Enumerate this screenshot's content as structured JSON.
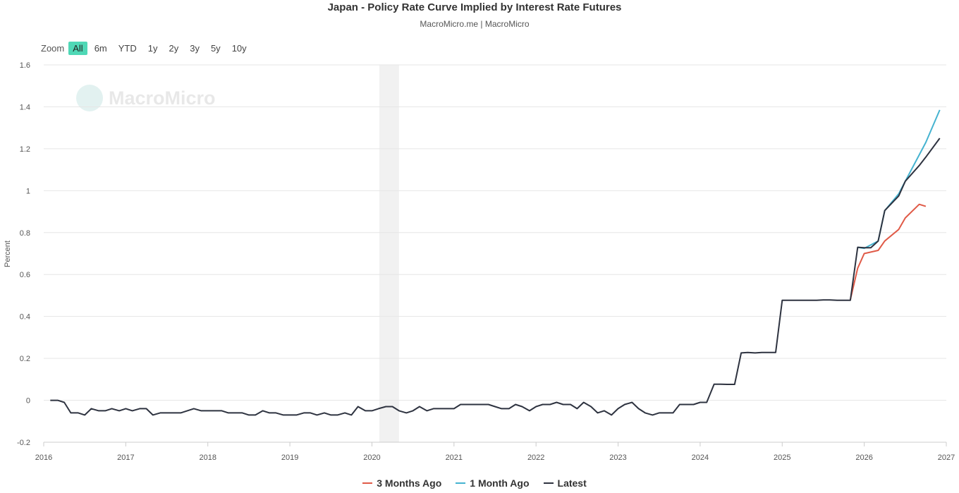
{
  "header": {
    "title": "Japan - Policy Rate Curve Implied by Interest Rate Futures",
    "subtitle": "MacroMicro.me | MacroMicro"
  },
  "zoom": {
    "label": "Zoom",
    "buttons": [
      "All",
      "6m",
      "YTD",
      "1y",
      "2y",
      "3y",
      "5y",
      "10y"
    ],
    "active": "All"
  },
  "watermark": {
    "text": "MacroMicro"
  },
  "chart_data": {
    "type": "line",
    "title": "Japan - Policy Rate Curve Implied by Interest Rate Futures",
    "subtitle": "MacroMicro.me | MacroMicro",
    "xlabel": "",
    "ylabel": "Percent",
    "xlim": [
      2016,
      2027
    ],
    "ylim": [
      -0.2,
      1.6
    ],
    "x_ticks": [
      "2016",
      "2017",
      "2018",
      "2019",
      "2020",
      "2021",
      "2022",
      "2023",
      "2024",
      "2025",
      "2026",
      "2027"
    ],
    "y_ticks": [
      "-0.2",
      "0",
      "0.2",
      "0.4",
      "0.6",
      "0.8",
      "1",
      "1.2",
      "1.4",
      "1.6"
    ],
    "grid": true,
    "legend_position": "bottom",
    "shaded_band": {
      "from": 2020.09,
      "to": 2020.33,
      "color": "#e8e8e8"
    },
    "series": [
      {
        "name": "3 Months Ago",
        "color": "#e05a47",
        "points": [
          [
            2025.83,
            0.48
          ],
          [
            2025.92,
            0.63
          ],
          [
            2026.0,
            0.7
          ],
          [
            2026.17,
            0.715
          ],
          [
            2026.25,
            0.76
          ],
          [
            2026.42,
            0.815
          ],
          [
            2026.5,
            0.87
          ],
          [
            2026.67,
            0.935
          ],
          [
            2026.75,
            0.925
          ]
        ]
      },
      {
        "name": "1 Month Ago",
        "color": "#45b3d0",
        "points": [
          [
            2025.92,
            0.73
          ],
          [
            2026.0,
            0.725
          ],
          [
            2026.17,
            0.76
          ],
          [
            2026.25,
            0.905
          ],
          [
            2026.42,
            0.985
          ],
          [
            2026.5,
            1.045
          ],
          [
            2026.75,
            1.23
          ],
          [
            2026.92,
            1.385
          ]
        ]
      },
      {
        "name": "Latest",
        "color": "#2e3340",
        "points": [
          [
            2016.08,
            0.0
          ],
          [
            2016.17,
            0.0
          ],
          [
            2016.25,
            -0.01
          ],
          [
            2016.33,
            -0.06
          ],
          [
            2016.42,
            -0.06
          ],
          [
            2016.5,
            -0.07
          ],
          [
            2016.58,
            -0.04
          ],
          [
            2016.67,
            -0.05
          ],
          [
            2016.75,
            -0.05
          ],
          [
            2016.83,
            -0.04
          ],
          [
            2016.92,
            -0.05
          ],
          [
            2017.0,
            -0.04
          ],
          [
            2017.08,
            -0.05
          ],
          [
            2017.17,
            -0.04
          ],
          [
            2017.25,
            -0.04
          ],
          [
            2017.33,
            -0.07
          ],
          [
            2017.42,
            -0.06
          ],
          [
            2017.5,
            -0.06
          ],
          [
            2017.58,
            -0.06
          ],
          [
            2017.67,
            -0.06
          ],
          [
            2017.75,
            -0.05
          ],
          [
            2017.83,
            -0.04
          ],
          [
            2017.92,
            -0.05
          ],
          [
            2018.0,
            -0.05
          ],
          [
            2018.08,
            -0.05
          ],
          [
            2018.17,
            -0.05
          ],
          [
            2018.25,
            -0.06
          ],
          [
            2018.33,
            -0.06
          ],
          [
            2018.42,
            -0.06
          ],
          [
            2018.5,
            -0.07
          ],
          [
            2018.58,
            -0.07
          ],
          [
            2018.67,
            -0.05
          ],
          [
            2018.75,
            -0.06
          ],
          [
            2018.83,
            -0.06
          ],
          [
            2018.92,
            -0.07
          ],
          [
            2019.0,
            -0.07
          ],
          [
            2019.08,
            -0.07
          ],
          [
            2019.17,
            -0.06
          ],
          [
            2019.25,
            -0.06
          ],
          [
            2019.33,
            -0.07
          ],
          [
            2019.42,
            -0.06
          ],
          [
            2019.5,
            -0.07
          ],
          [
            2019.58,
            -0.07
          ],
          [
            2019.67,
            -0.06
          ],
          [
            2019.75,
            -0.07
          ],
          [
            2019.83,
            -0.03
          ],
          [
            2019.92,
            -0.05
          ],
          [
            2020.0,
            -0.05
          ],
          [
            2020.08,
            -0.04
          ],
          [
            2020.17,
            -0.03
          ],
          [
            2020.25,
            -0.03
          ],
          [
            2020.33,
            -0.05
          ],
          [
            2020.42,
            -0.06
          ],
          [
            2020.5,
            -0.05
          ],
          [
            2020.58,
            -0.03
          ],
          [
            2020.67,
            -0.05
          ],
          [
            2020.75,
            -0.04
          ],
          [
            2020.83,
            -0.04
          ],
          [
            2020.92,
            -0.04
          ],
          [
            2021.0,
            -0.04
          ],
          [
            2021.08,
            -0.02
          ],
          [
            2021.17,
            -0.02
          ],
          [
            2021.25,
            -0.02
          ],
          [
            2021.33,
            -0.02
          ],
          [
            2021.42,
            -0.02
          ],
          [
            2021.5,
            -0.03
          ],
          [
            2021.58,
            -0.04
          ],
          [
            2021.67,
            -0.04
          ],
          [
            2021.75,
            -0.02
          ],
          [
            2021.83,
            -0.03
          ],
          [
            2021.92,
            -0.05
          ],
          [
            2022.0,
            -0.03
          ],
          [
            2022.08,
            -0.02
          ],
          [
            2022.17,
            -0.02
          ],
          [
            2022.25,
            -0.01
          ],
          [
            2022.33,
            -0.02
          ],
          [
            2022.42,
            -0.02
          ],
          [
            2022.5,
            -0.04
          ],
          [
            2022.58,
            -0.01
          ],
          [
            2022.67,
            -0.03
          ],
          [
            2022.75,
            -0.06
          ],
          [
            2022.83,
            -0.05
          ],
          [
            2022.92,
            -0.07
          ],
          [
            2023.0,
            -0.04
          ],
          [
            2023.08,
            -0.02
          ],
          [
            2023.17,
            -0.01
          ],
          [
            2023.25,
            -0.04
          ],
          [
            2023.33,
            -0.06
          ],
          [
            2023.42,
            -0.07
          ],
          [
            2023.5,
            -0.06
          ],
          [
            2023.58,
            -0.06
          ],
          [
            2023.67,
            -0.06
          ],
          [
            2023.75,
            -0.02
          ],
          [
            2023.83,
            -0.02
          ],
          [
            2023.92,
            -0.02
          ],
          [
            2024.0,
            -0.01
          ],
          [
            2024.08,
            -0.01
          ],
          [
            2024.17,
            0.077
          ],
          [
            2024.25,
            0.077
          ],
          [
            2024.33,
            0.076
          ],
          [
            2024.42,
            0.076
          ],
          [
            2024.5,
            0.226
          ],
          [
            2024.58,
            0.228
          ],
          [
            2024.67,
            0.226
          ],
          [
            2024.75,
            0.228
          ],
          [
            2024.83,
            0.228
          ],
          [
            2024.92,
            0.228
          ],
          [
            2025.0,
            0.477
          ],
          [
            2025.08,
            0.477
          ],
          [
            2025.17,
            0.477
          ],
          [
            2025.25,
            0.477
          ],
          [
            2025.33,
            0.477
          ],
          [
            2025.42,
            0.477
          ],
          [
            2025.5,
            0.479
          ],
          [
            2025.58,
            0.479
          ],
          [
            2025.67,
            0.477
          ],
          [
            2025.75,
            0.477
          ],
          [
            2025.83,
            0.477
          ],
          [
            2025.92,
            0.73
          ],
          [
            2026.0,
            0.728
          ],
          [
            2026.08,
            0.728
          ],
          [
            2026.17,
            0.76
          ],
          [
            2026.25,
            0.905
          ],
          [
            2026.42,
            0.975
          ],
          [
            2026.5,
            1.045
          ],
          [
            2026.67,
            1.12
          ],
          [
            2026.75,
            1.16
          ],
          [
            2026.92,
            1.25
          ]
        ]
      }
    ]
  }
}
